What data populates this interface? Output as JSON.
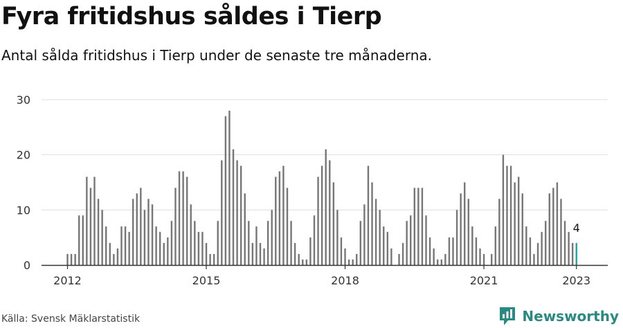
{
  "title": "Fyra fritidshus såldes i Tierp",
  "subtitle": "Antal sålda fritidshus i Tierp under de senaste tre månaderna.",
  "source": "Källa: Svensk Mäklarstatistik",
  "brand": "Newsworthy",
  "colors": {
    "bar": "#767676",
    "highlight": "#1aa89e",
    "grid": "#dddddd",
    "brand": "#2a8a82"
  },
  "chart_data": {
    "type": "bar",
    "start": "2012-01",
    "end": "2023-01",
    "ylim": [
      0,
      30
    ],
    "yticks": [
      0,
      10,
      20,
      30
    ],
    "xticks": [
      "2012",
      "2015",
      "2018",
      "2021",
      "2023"
    ],
    "callout": "4",
    "x": [
      "2012-01",
      "2012-02",
      "2012-03",
      "2012-04",
      "2012-05",
      "2012-06",
      "2012-07",
      "2012-08",
      "2012-09",
      "2012-10",
      "2012-11",
      "2012-12",
      "2013-01",
      "2013-02",
      "2013-03",
      "2013-04",
      "2013-05",
      "2013-06",
      "2013-07",
      "2013-08",
      "2013-09",
      "2013-10",
      "2013-11",
      "2013-12",
      "2014-01",
      "2014-02",
      "2014-03",
      "2014-04",
      "2014-05",
      "2014-06",
      "2014-07",
      "2014-08",
      "2014-09",
      "2014-10",
      "2014-11",
      "2014-12",
      "2015-01",
      "2015-02",
      "2015-03",
      "2015-04",
      "2015-05",
      "2015-06",
      "2015-07",
      "2015-08",
      "2015-09",
      "2015-10",
      "2015-11",
      "2015-12",
      "2016-01",
      "2016-02",
      "2016-03",
      "2016-04",
      "2016-05",
      "2016-06",
      "2016-07",
      "2016-08",
      "2016-09",
      "2016-10",
      "2016-11",
      "2016-12",
      "2017-01",
      "2017-02",
      "2017-03",
      "2017-04",
      "2017-05",
      "2017-06",
      "2017-07",
      "2017-08",
      "2017-09",
      "2017-10",
      "2017-11",
      "2017-12",
      "2018-01",
      "2018-02",
      "2018-03",
      "2018-04",
      "2018-05",
      "2018-06",
      "2018-07",
      "2018-08",
      "2018-09",
      "2018-10",
      "2018-11",
      "2018-12",
      "2019-01",
      "2019-02",
      "2019-03",
      "2019-04",
      "2019-05",
      "2019-06",
      "2019-07",
      "2019-08",
      "2019-09",
      "2019-10",
      "2019-11",
      "2019-12",
      "2020-01",
      "2020-02",
      "2020-03",
      "2020-04",
      "2020-05",
      "2020-06",
      "2020-07",
      "2020-08",
      "2020-09",
      "2020-10",
      "2020-11",
      "2020-12",
      "2021-01",
      "2021-02",
      "2021-03",
      "2021-04",
      "2021-05",
      "2021-06",
      "2021-07",
      "2021-08",
      "2021-09",
      "2021-10",
      "2021-11",
      "2021-12",
      "2022-01",
      "2022-02",
      "2022-03",
      "2022-04",
      "2022-05",
      "2022-06",
      "2022-07",
      "2022-08",
      "2022-09",
      "2022-10",
      "2022-11",
      "2022-12",
      "2023-01"
    ],
    "values": [
      2,
      2,
      2,
      9,
      9,
      16,
      14,
      16,
      12,
      10,
      7,
      4,
      2,
      3,
      7,
      7,
      6,
      12,
      13,
      14,
      10,
      12,
      11,
      7,
      6,
      4,
      5,
      8,
      14,
      17,
      17,
      16,
      11,
      8,
      6,
      6,
      4,
      2,
      2,
      8,
      19,
      27,
      28,
      21,
      19,
      18,
      13,
      8,
      4,
      7,
      4,
      3,
      8,
      10,
      16,
      17,
      18,
      14,
      8,
      4,
      2,
      1,
      1,
      5,
      9,
      16,
      18,
      21,
      19,
      15,
      10,
      5,
      3,
      1,
      1,
      2,
      8,
      11,
      18,
      15,
      12,
      10,
      7,
      6,
      3,
      0,
      2,
      4,
      8,
      9,
      14,
      14,
      14,
      9,
      5,
      3,
      1,
      1,
      2,
      5,
      5,
      10,
      13,
      15,
      12,
      7,
      5,
      3,
      2,
      0,
      2,
      7,
      12,
      20,
      18,
      18,
      15,
      16,
      13,
      7,
      5,
      2,
      4,
      6,
      8,
      13,
      14,
      15,
      12,
      8,
      6,
      4,
      4
    ]
  }
}
